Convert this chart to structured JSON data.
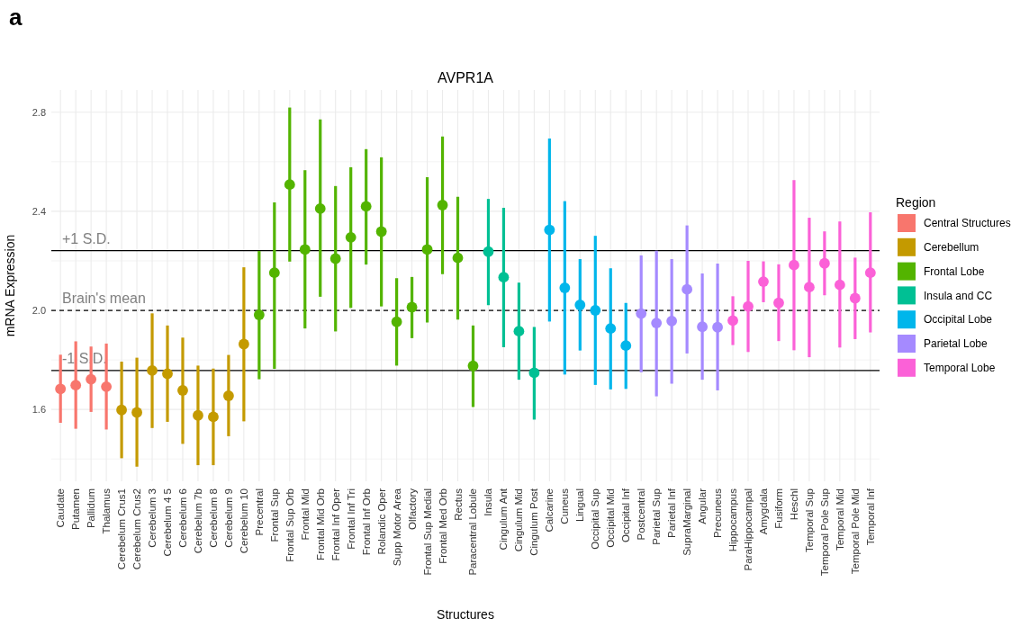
{
  "chart_data": {
    "type": "scatter",
    "title": "AVPR1A",
    "xlabel": "Structures",
    "ylabel": "mRNA Expression",
    "legend_title": "Region",
    "legend": "right",
    "grid": true,
    "marker": "circle",
    "annotations": [
      "a"
    ],
    "categories": [
      "Caudate",
      "Putamen",
      "Pallidum",
      "Thalamus",
      "Cerebelum Crus1",
      "Cerebelum Crus2",
      "Cerebelum 3",
      "Cerebelum 4 5",
      "Cerebelum 6",
      "Cerebelum 7b",
      "Cerebelum 8",
      "Cerebelum 9",
      "Cerebelum 10",
      "Precentral",
      "Frontal Sup",
      "Frontal Sup Orb",
      "Frontal Mid",
      "Frontal Mid Orb",
      "Frontal Inf Oper",
      "Frontal Inf Tri",
      "Frontal Inf Orb",
      "Rolandic Oper",
      "Supp Motor Area",
      "Olfactory",
      "Frontal Sup Medial",
      "Frontal Med Orb",
      "Rectus",
      "Paracentral Lobule",
      "Insula",
      "Cingulum Ant",
      "Cingulum Mid",
      "Cingulum Post",
      "Calcarine",
      "Cuneus",
      "Lingual",
      "Occipital Sup",
      "Occipital Mid",
      "Occipital Inf",
      "Postcentral",
      "Parietal Sup",
      "Parietal Inf",
      "SupraMarginal",
      "Angular",
      "Precuneus",
      "Hippocampus",
      "ParaHippocampal",
      "Amygdala",
      "Fusiform",
      "Heschl",
      "Temporal Sup",
      "Temporal Pole Sup",
      "Temporal Mid",
      "Temporal Pole Mid",
      "Temporal Inf"
    ],
    "ylim": [
      1.31,
      2.89
    ],
    "yticks": [
      {
        "value": 1.4,
        "label": null
      },
      1.6,
      {
        "value": 1.8,
        "label": null
      },
      {
        "value": 2.0,
        "label": "2.0"
      },
      {
        "value": 2.2,
        "label": null
      },
      2.4,
      {
        "value": 2.6,
        "label": null
      },
      2.8
    ],
    "ref_lines": [
      {
        "axis": "y",
        "value": 2.241,
        "label": "+1 S.D.",
        "line_style": "solid"
      },
      {
        "axis": "y",
        "value": 2.0,
        "label": "Brain's mean",
        "line_style": "dashed"
      },
      {
        "axis": "y",
        "value": 1.757,
        "label": "-1 S.D.",
        "line_style": "solid"
      }
    ],
    "series": [
      {
        "name": "Central Structures",
        "color": "#f8766d",
        "x": [
          "Caudate",
          "Putamen",
          "Pallidum",
          "Thalamus"
        ],
        "values": [
          1.683,
          1.698,
          1.722,
          1.692
        ],
        "errors": [
          [
            1.546,
            1.821
          ],
          [
            1.522,
            1.875
          ],
          [
            1.59,
            1.854
          ],
          [
            1.519,
            1.866
          ]
        ]
      },
      {
        "name": "Cerebellum",
        "color": "#c49a00",
        "x": [
          "Cerebelum Crus1",
          "Cerebelum Crus2",
          "Cerebelum 3",
          "Cerebelum 4 5",
          "Cerebelum 6",
          "Cerebelum 7b",
          "Cerebelum 8",
          "Cerebelum 9",
          "Cerebelum 10"
        ],
        "values": [
          1.598,
          1.588,
          1.757,
          1.744,
          1.677,
          1.576,
          1.57,
          1.655,
          1.864
        ],
        "errors": [
          [
            1.403,
            1.793
          ],
          [
            1.369,
            1.809
          ],
          [
            1.525,
            1.988
          ],
          [
            1.55,
            1.939
          ],
          [
            1.461,
            1.89
          ],
          [
            1.375,
            1.777
          ],
          [
            1.375,
            1.765
          ],
          [
            1.492,
            1.82
          ],
          [
            1.552,
            2.174
          ]
        ]
      },
      {
        "name": "Frontal Lobe",
        "color": "#53b400",
        "x": [
          "Precentral",
          "Frontal Sup",
          "Frontal Sup Orb",
          "Frontal Mid",
          "Frontal Mid Orb",
          "Frontal Inf Oper",
          "Frontal Inf Tri",
          "Frontal Inf Orb",
          "Rolandic Oper",
          "Supp Motor Area",
          "Olfactory",
          "Frontal Sup Medial",
          "Frontal Med Orb",
          "Rectus",
          "Paracentral Lobule"
        ],
        "values": [
          1.982,
          2.152,
          2.508,
          2.246,
          2.411,
          2.209,
          2.295,
          2.42,
          2.318,
          1.954,
          2.013,
          2.246,
          2.425,
          2.212,
          1.776
        ],
        "errors": [
          [
            1.722,
            2.24
          ],
          [
            1.764,
            2.436
          ],
          [
            2.197,
            2.819
          ],
          [
            1.927,
            2.566
          ],
          [
            2.055,
            2.771
          ],
          [
            1.915,
            2.502
          ],
          [
            2.01,
            2.578
          ],
          [
            2.185,
            2.651
          ],
          [
            2.016,
            2.618
          ],
          [
            1.777,
            2.13
          ],
          [
            1.888,
            2.135
          ],
          [
            1.951,
            2.538
          ],
          [
            2.146,
            2.702
          ],
          [
            1.963,
            2.459
          ],
          [
            1.61,
            1.939
          ]
        ]
      },
      {
        "name": "Insula and CC",
        "color": "#00c094",
        "x": [
          "Insula",
          "Cingulum Ant",
          "Cingulum Mid",
          "Cingulum Post"
        ],
        "values": [
          2.237,
          2.134,
          1.916,
          1.748
        ],
        "errors": [
          [
            2.021,
            2.45
          ],
          [
            1.851,
            2.414
          ],
          [
            1.72,
            2.112
          ],
          [
            1.559,
            1.933
          ]
        ]
      },
      {
        "name": "Occipital Lobe",
        "color": "#00b6eb",
        "x": [
          "Calcarine",
          "Cuneus",
          "Lingual",
          "Occipital Sup",
          "Occipital Mid",
          "Occipital Inf"
        ],
        "values": [
          2.325,
          2.091,
          2.022,
          2.0,
          1.927,
          1.858
        ],
        "errors": [
          [
            1.955,
            2.694
          ],
          [
            1.741,
            2.441
          ],
          [
            1.838,
            2.207
          ],
          [
            1.699,
            2.301
          ],
          [
            1.681,
            2.17
          ],
          [
            1.683,
            2.03
          ]
        ]
      },
      {
        "name": "Parietal Lobe",
        "color": "#a58aff",
        "x": [
          "Postcentral",
          "Parietal Sup",
          "Parietal Inf",
          "SupraMarginal",
          "Angular",
          "Precuneus"
        ],
        "values": [
          1.987,
          1.949,
          1.957,
          2.085,
          1.934,
          1.932
        ],
        "errors": [
          [
            1.75,
            2.222
          ],
          [
            1.653,
            2.241
          ],
          [
            1.704,
            2.207
          ],
          [
            1.826,
            2.343
          ],
          [
            1.72,
            2.149
          ],
          [
            1.677,
            2.189
          ]
        ]
      },
      {
        "name": "Temporal Lobe",
        "color": "#fb61d7",
        "x": [
          "Hippocampus",
          "ParaHippocampal",
          "Amygdala",
          "Fusiform",
          "Heschl",
          "Temporal Sup",
          "Temporal Pole Sup",
          "Temporal Mid",
          "Temporal Pole Mid",
          "Temporal Inf"
        ],
        "values": [
          1.959,
          2.016,
          2.116,
          2.03,
          2.183,
          2.094,
          2.19,
          2.103,
          2.049,
          2.152
        ],
        "errors": [
          [
            1.86,
            2.057
          ],
          [
            1.832,
            2.2
          ],
          [
            2.033,
            2.198
          ],
          [
            1.876,
            2.186
          ],
          [
            1.839,
            2.526
          ],
          [
            1.811,
            2.374
          ],
          [
            2.061,
            2.319
          ],
          [
            1.85,
            2.359
          ],
          [
            1.884,
            2.213
          ],
          [
            1.911,
            2.396
          ]
        ]
      }
    ]
  }
}
